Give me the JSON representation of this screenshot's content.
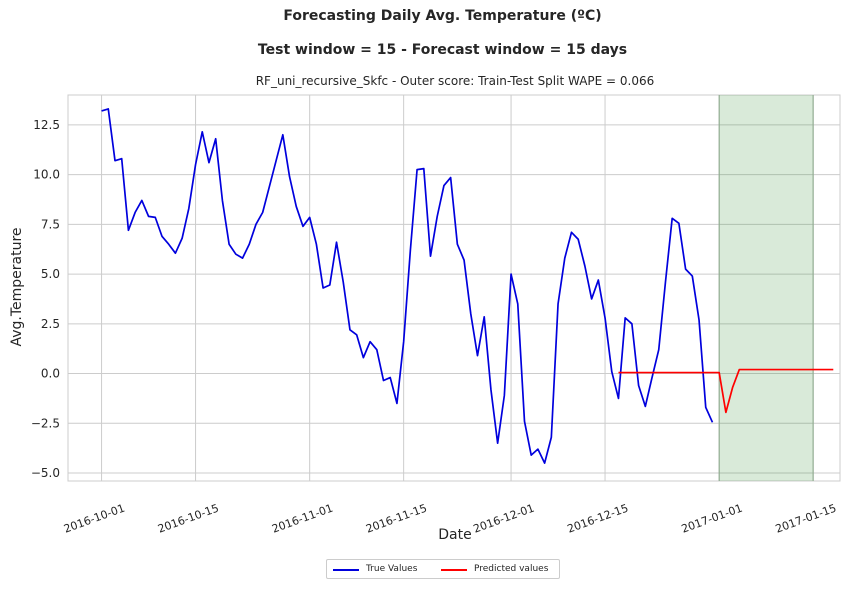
{
  "title": "Forecasting Daily Avg. Temperature (ºC)",
  "subtitle": "Test window = 15 - Forecast window = 15 days",
  "score_line": "RF_uni_recursive_Skfc - Outer score: Train-Test Split WAPE = 0.066",
  "colors": {
    "true_series": "#0000dd",
    "predicted_series": "#ff0000",
    "forecast_window": "#2e8b2e",
    "grid": "#cccccc"
  },
  "chart_data": {
    "type": "line",
    "xlabel": "Date",
    "ylabel": "Avg.Temperature",
    "x_ticks": [
      "2016-10-01",
      "2016-10-15",
      "2016-11-01",
      "2016-11-15",
      "2016-12-01",
      "2016-12-15",
      "2017-01-01",
      "2017-01-15"
    ],
    "y_ticks": [
      "−5.0",
      "−2.5",
      "0.0",
      "2.5",
      "5.0",
      "7.5",
      "10.0",
      "12.5"
    ],
    "xlim": [
      "2016-09-26",
      "2017-01-19"
    ],
    "ylim": [
      -5.4,
      14.0
    ],
    "grid": true,
    "legend_position": "bottom-center",
    "forecast_window": [
      "2017-01-01",
      "2017-01-15"
    ],
    "series": [
      {
        "name": "True Values",
        "x_start": "2016-10-01",
        "values": [
          13.2,
          13.3,
          10.7,
          10.8,
          7.2,
          8.1,
          8.7,
          7.9,
          7.85,
          6.9,
          6.5,
          6.05,
          6.8,
          8.3,
          10.5,
          12.15,
          10.6,
          11.8,
          8.7,
          6.5,
          6.0,
          5.8,
          6.5,
          7.5,
          8.1,
          9.4,
          10.7,
          12.0,
          9.9,
          8.4,
          7.4,
          7.85,
          6.5,
          4.3,
          4.45,
          6.6,
          4.6,
          2.2,
          1.95,
          0.8,
          1.6,
          1.2,
          -0.35,
          -0.2,
          -1.5,
          1.6,
          6.2,
          10.25,
          10.3,
          5.9,
          7.9,
          9.45,
          9.85,
          6.5,
          5.7,
          3.0,
          0.9,
          2.85,
          -0.8,
          -3.5,
          -1.1,
          5.0,
          3.5,
          -2.4,
          -4.1,
          -3.8,
          -4.5,
          -3.2,
          3.5,
          5.8,
          7.1,
          6.75,
          5.4,
          3.75,
          4.7,
          2.8,
          0.1,
          -1.25,
          2.8,
          2.5,
          -0.6,
          -1.65,
          -0.2,
          1.2,
          4.6,
          7.8,
          7.55,
          5.25,
          4.9,
          2.7,
          -1.7,
          -2.45
        ]
      },
      {
        "name": "Predicted values",
        "x_start": "2016-12-17",
        "values": [
          0.05,
          0.05,
          0.05,
          0.05,
          0.05,
          0.05,
          0.05,
          0.05,
          0.05,
          0.05,
          0.05,
          0.05,
          0.05,
          0.05,
          0.05,
          0.05,
          -1.95,
          -0.7,
          0.2,
          0.2,
          0.2,
          0.2,
          0.2,
          0.2,
          0.2,
          0.2,
          0.2,
          0.2,
          0.2,
          0.2,
          0.2,
          0.2,
          0.2
        ]
      }
    ]
  }
}
